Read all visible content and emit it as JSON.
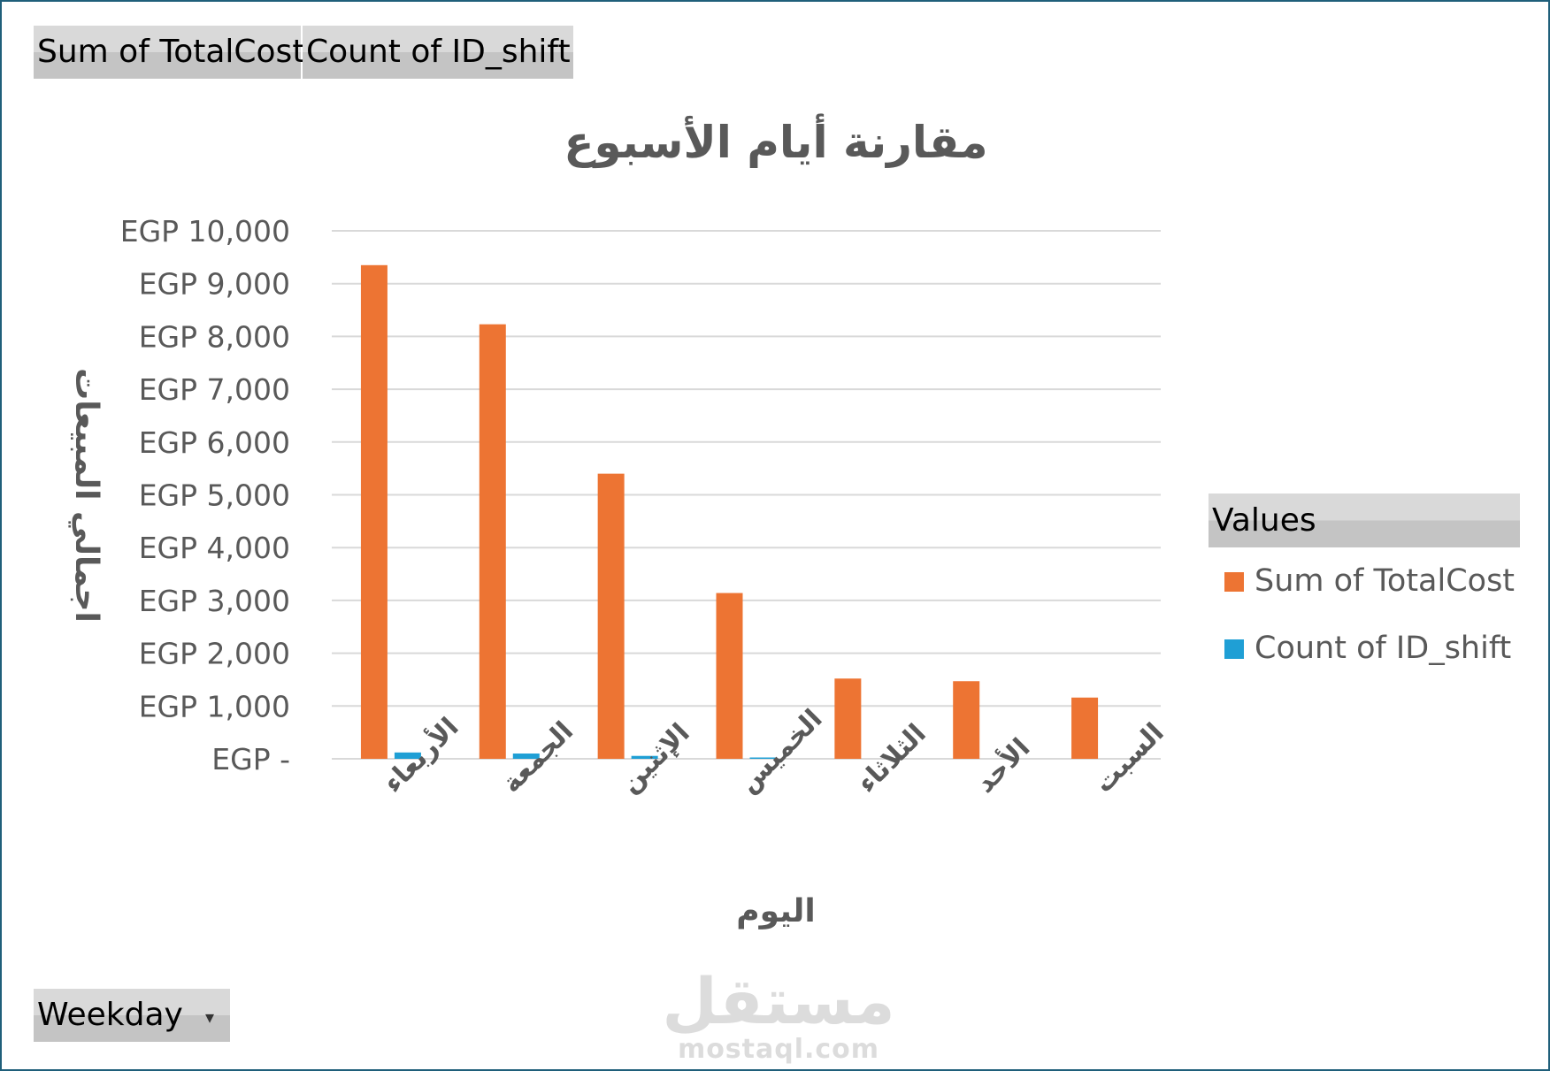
{
  "pivot_buttons": {
    "sum_label": "Sum of TotalCost",
    "count_label": "Count of ID_shift",
    "weekday_label": "Weekday"
  },
  "legend": {
    "header": "Values",
    "items": [
      {
        "label": "Sum of TotalCost",
        "color": "#ed7433"
      },
      {
        "label": "Count of ID_shift",
        "color": "#1f9fd5"
      }
    ]
  },
  "watermark": {
    "arabic": "مستقل",
    "latin": "mostaql.com"
  },
  "chart_data": {
    "type": "bar",
    "title": "مقارنة أيام الأسبوع",
    "xlabel": "اليوم",
    "ylabel": "اجمالي المبيعات",
    "categories": [
      "الأربعاء",
      "الجمعة",
      "الإثنين",
      "الخميس",
      "الثلاثاء",
      "الأحد",
      "السبت"
    ],
    "series": [
      {
        "name": "Sum of TotalCost",
        "color": "#ed7433",
        "values": [
          9350,
          8230,
          5400,
          3140,
          1520,
          1470,
          1160
        ]
      },
      {
        "name": "Count of ID_shift",
        "color": "#1f9fd5",
        "values": [
          120,
          100,
          55,
          25,
          0,
          0,
          0
        ]
      }
    ],
    "ylim": [
      0,
      10000
    ],
    "yticks": [
      {
        "value": 0,
        "label": "EGP -"
      },
      {
        "value": 1000,
        "label": "EGP 1,000"
      },
      {
        "value": 2000,
        "label": "EGP 2,000"
      },
      {
        "value": 3000,
        "label": "EGP 3,000"
      },
      {
        "value": 4000,
        "label": "EGP 4,000"
      },
      {
        "value": 5000,
        "label": "EGP 5,000"
      },
      {
        "value": 6000,
        "label": "EGP 6,000"
      },
      {
        "value": 7000,
        "label": "EGP 7,000"
      },
      {
        "value": 8000,
        "label": "EGP 8,000"
      },
      {
        "value": 9000,
        "label": "EGP 9,000"
      },
      {
        "value": 10000,
        "label": "EGP 10,000"
      }
    ],
    "grid": true,
    "legend_position": "right"
  }
}
